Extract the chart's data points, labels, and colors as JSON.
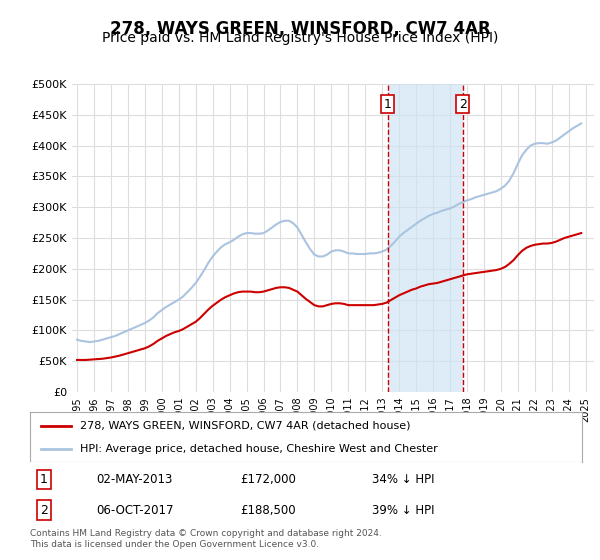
{
  "title": "278, WAYS GREEN, WINSFORD, CW7 4AR",
  "subtitle": "Price paid vs. HM Land Registry's House Price Index (HPI)",
  "title_fontsize": 12,
  "subtitle_fontsize": 10,
  "xlabel": "",
  "ylabel": "",
  "ylim": [
    0,
    500000
  ],
  "yticks": [
    0,
    50000,
    100000,
    150000,
    200000,
    250000,
    300000,
    350000,
    400000,
    450000,
    500000
  ],
  "ytick_labels": [
    "£0",
    "£50K",
    "£100K",
    "£150K",
    "£200K",
    "£250K",
    "£300K",
    "£350K",
    "£400K",
    "£450K",
    "£500K"
  ],
  "year_start": 1995.0,
  "year_end": 2025.5,
  "background_color": "#ffffff",
  "plot_bg_color": "#ffffff",
  "grid_color": "#dddddd",
  "hpi_color": "#aac4e0",
  "price_color": "#cc0000",
  "vline_color": "#cc0000",
  "shade_color": "#d0e4f5",
  "marker1_year": 2013.33,
  "marker2_year": 2017.75,
  "marker1_price": 172000,
  "marker2_price": 188500,
  "marker1_label": "1",
  "marker2_label": "2",
  "legend_line1": "278, WAYS GREEN, WINSFORD, CW7 4AR (detached house)",
  "legend_line2": "HPI: Average price, detached house, Cheshire West and Chester",
  "table_row1": [
    "1",
    "02-MAY-2013",
    "£172,000",
    "34% ↓ HPI"
  ],
  "table_row2": [
    "2",
    "06-OCT-2017",
    "£188,500",
    "39% ↓ HPI"
  ],
  "footer": "Contains HM Land Registry data © Crown copyright and database right 2024.\nThis data is licensed under the Open Government Licence v3.0.",
  "hpi_data_years": [
    1995.0,
    1995.25,
    1995.5,
    1995.75,
    1996.0,
    1996.25,
    1996.5,
    1996.75,
    1997.0,
    1997.25,
    1997.5,
    1997.75,
    1998.0,
    1998.25,
    1998.5,
    1998.75,
    1999.0,
    1999.25,
    1999.5,
    1999.75,
    2000.0,
    2000.25,
    2000.5,
    2000.75,
    2001.0,
    2001.25,
    2001.5,
    2001.75,
    2002.0,
    2002.25,
    2002.5,
    2002.75,
    2003.0,
    2003.25,
    2003.5,
    2003.75,
    2004.0,
    2004.25,
    2004.5,
    2004.75,
    2005.0,
    2005.25,
    2005.5,
    2005.75,
    2006.0,
    2006.25,
    2006.5,
    2006.75,
    2007.0,
    2007.25,
    2007.5,
    2007.75,
    2008.0,
    2008.25,
    2008.5,
    2008.75,
    2009.0,
    2009.25,
    2009.5,
    2009.75,
    2010.0,
    2010.25,
    2010.5,
    2010.75,
    2011.0,
    2011.25,
    2011.5,
    2011.75,
    2012.0,
    2012.25,
    2012.5,
    2012.75,
    2013.0,
    2013.25,
    2013.5,
    2013.75,
    2014.0,
    2014.25,
    2014.5,
    2014.75,
    2015.0,
    2015.25,
    2015.5,
    2015.75,
    2016.0,
    2016.25,
    2016.5,
    2016.75,
    2017.0,
    2017.25,
    2017.5,
    2017.75,
    2018.0,
    2018.25,
    2018.5,
    2018.75,
    2019.0,
    2019.25,
    2019.5,
    2019.75,
    2020.0,
    2020.25,
    2020.5,
    2020.75,
    2021.0,
    2021.25,
    2021.5,
    2021.75,
    2022.0,
    2022.25,
    2022.5,
    2022.75,
    2023.0,
    2023.25,
    2023.5,
    2023.75,
    2024.0,
    2024.25,
    2024.5,
    2024.75
  ],
  "hpi_values": [
    85000,
    83000,
    82000,
    81000,
    82000,
    83000,
    85000,
    87000,
    89000,
    91000,
    94000,
    97000,
    100000,
    103000,
    106000,
    109000,
    112000,
    116000,
    121000,
    128000,
    133000,
    138000,
    142000,
    146000,
    150000,
    155000,
    162000,
    169000,
    177000,
    187000,
    198000,
    210000,
    220000,
    228000,
    235000,
    240000,
    243000,
    247000,
    252000,
    256000,
    258000,
    258000,
    257000,
    257000,
    258000,
    262000,
    267000,
    272000,
    276000,
    278000,
    278000,
    274000,
    267000,
    255000,
    243000,
    232000,
    223000,
    220000,
    220000,
    223000,
    228000,
    230000,
    230000,
    228000,
    225000,
    225000,
    224000,
    224000,
    224000,
    225000,
    225000,
    226000,
    228000,
    231000,
    237000,
    244000,
    252000,
    258000,
    263000,
    268000,
    273000,
    278000,
    282000,
    286000,
    289000,
    291000,
    294000,
    296000,
    298000,
    301000,
    305000,
    308000,
    311000,
    313000,
    316000,
    318000,
    320000,
    322000,
    324000,
    326000,
    330000,
    335000,
    343000,
    355000,
    370000,
    384000,
    393000,
    400000,
    403000,
    404000,
    404000,
    403000,
    405000,
    408000,
    413000,
    418000,
    423000,
    428000,
    432000,
    436000
  ],
  "price_data_years": [
    1995.0,
    1995.25,
    1995.5,
    1995.75,
    1996.0,
    1996.25,
    1996.5,
    1996.75,
    1997.0,
    1997.25,
    1997.5,
    1997.75,
    1998.0,
    1998.25,
    1998.5,
    1998.75,
    1999.0,
    1999.25,
    1999.5,
    1999.75,
    2000.0,
    2000.25,
    2000.5,
    2000.75,
    2001.0,
    2001.25,
    2001.5,
    2001.75,
    2002.0,
    2002.25,
    2002.5,
    2002.75,
    2003.0,
    2003.25,
    2003.5,
    2003.75,
    2004.0,
    2004.25,
    2004.5,
    2004.75,
    2005.0,
    2005.25,
    2005.5,
    2005.75,
    2006.0,
    2006.25,
    2006.5,
    2006.75,
    2007.0,
    2007.25,
    2007.5,
    2007.75,
    2008.0,
    2008.25,
    2008.5,
    2008.75,
    2009.0,
    2009.25,
    2009.5,
    2009.75,
    2010.0,
    2010.25,
    2010.5,
    2010.75,
    2011.0,
    2011.25,
    2011.5,
    2011.75,
    2012.0,
    2012.25,
    2012.5,
    2012.75,
    2013.0,
    2013.25,
    2013.5,
    2013.75,
    2014.0,
    2014.25,
    2014.5,
    2014.75,
    2015.0,
    2015.25,
    2015.5,
    2015.75,
    2016.0,
    2016.25,
    2016.5,
    2016.75,
    2017.0,
    2017.25,
    2017.5,
    2017.75,
    2018.0,
    2018.25,
    2018.5,
    2018.75,
    2019.0,
    2019.25,
    2019.5,
    2019.75,
    2020.0,
    2020.25,
    2020.5,
    2020.75,
    2021.0,
    2021.25,
    2021.5,
    2021.75,
    2022.0,
    2022.25,
    2022.5,
    2022.75,
    2023.0,
    2023.25,
    2023.5,
    2023.75,
    2024.0,
    2024.25,
    2024.5,
    2024.75
  ],
  "price_values": [
    52000,
    52000,
    52000,
    52500,
    53000,
    53500,
    54000,
    55000,
    56000,
    57500,
    59000,
    61000,
    63000,
    65000,
    67000,
    69000,
    71000,
    74000,
    78000,
    83000,
    87000,
    91000,
    94000,
    97000,
    99000,
    102000,
    106000,
    110000,
    114000,
    120000,
    127000,
    134000,
    140000,
    145000,
    150000,
    154000,
    157000,
    160000,
    162000,
    163000,
    163000,
    163000,
    162000,
    162000,
    163000,
    165000,
    167000,
    169000,
    170000,
    170000,
    169000,
    166000,
    163000,
    157000,
    151000,
    146000,
    141000,
    139000,
    139000,
    141000,
    143000,
    144000,
    144000,
    143000,
    141000,
    141000,
    141000,
    141000,
    141000,
    141000,
    141000,
    142000,
    143000,
    145000,
    149000,
    153000,
    157000,
    160000,
    163000,
    166000,
    168000,
    171000,
    173000,
    175000,
    176000,
    177000,
    179000,
    181000,
    183000,
    185000,
    187000,
    189000,
    191000,
    192000,
    193000,
    194000,
    195000,
    196000,
    197000,
    198000,
    200000,
    203000,
    208000,
    214000,
    222000,
    229000,
    234000,
    237000,
    239000,
    240000,
    241000,
    241000,
    242000,
    244000,
    247000,
    250000,
    252000,
    254000,
    256000,
    258000
  ]
}
